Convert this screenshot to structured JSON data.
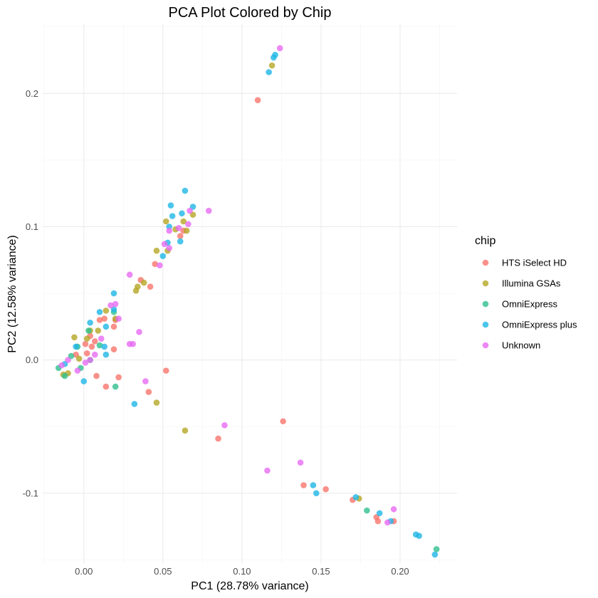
{
  "chart_data": {
    "type": "scatter",
    "title": "PCA Plot Colored by Chip",
    "xlabel": "PC1 (28.78% variance)",
    "ylabel": "PC2 (12.58% variance)",
    "xlim": [
      -0.026,
      0.236
    ],
    "ylim": [
      -0.153,
      0.252
    ],
    "x_ticks": [
      0.0,
      0.05,
      0.1,
      0.15,
      0.2
    ],
    "x_tick_labels": [
      "0.00",
      "0.05",
      "0.10",
      "0.15",
      "0.20"
    ],
    "y_ticks": [
      -0.1,
      0.0,
      0.1,
      0.2
    ],
    "y_tick_labels": [
      "-0.1",
      "0.0",
      "0.1",
      "0.2"
    ],
    "grid": true,
    "legend": {
      "title": "chip",
      "position": "right"
    },
    "series": [
      {
        "name": "HTS iSelect HD",
        "color": "#F8766D",
        "points": [
          [
            0.11,
            0.195
          ],
          [
            0.036,
            0.06
          ],
          [
            0.042,
            0.055
          ],
          [
            0.045,
            0.072
          ],
          [
            0.061,
            0.093
          ],
          [
            0.019,
            0.025
          ],
          [
            0.01,
            0.03
          ],
          [
            0.013,
            0.031
          ],
          [
            0.019,
            0.008
          ],
          [
            0.008,
            -0.012
          ],
          [
            0.014,
            -0.02
          ],
          [
            0.022,
            -0.013
          ],
          [
            0.041,
            -0.024
          ],
          [
            0.052,
            -0.008
          ],
          [
            0.063,
            0.097
          ],
          [
            0.005,
            0.01
          ],
          [
            0.007,
            0.014
          ],
          [
            0.004,
            0.018
          ],
          [
            0.001,
            0.012
          ],
          [
            0.126,
            -0.046
          ],
          [
            0.085,
            -0.059
          ],
          [
            0.139,
            -0.094
          ],
          [
            0.153,
            -0.097
          ],
          [
            0.17,
            -0.105
          ],
          [
            0.185,
            -0.118
          ],
          [
            0.186,
            -0.121
          ],
          [
            0.196,
            -0.121
          ],
          [
            0.002,
            0.005
          ],
          [
            -0.005,
            0.004
          ],
          [
            0.02,
            0.03
          ]
        ]
      },
      {
        "name": "Illumina GSAs",
        "color": "#B5A625",
        "points": [
          [
            0.119,
            0.221
          ],
          [
            0.052,
            0.104
          ],
          [
            0.058,
            0.098
          ],
          [
            0.063,
            0.104
          ],
          [
            0.069,
            0.109
          ],
          [
            0.046,
            0.082
          ],
          [
            0.053,
            0.082
          ],
          [
            0.034,
            0.055
          ],
          [
            0.038,
            0.058
          ],
          [
            0.033,
            0.052
          ],
          [
            0.02,
            0.031
          ],
          [
            0.014,
            0.037
          ],
          [
            0.009,
            0.022
          ],
          [
            0.004,
            0.022
          ],
          [
            0.002,
            0.016
          ],
          [
            -0.006,
            0.017
          ],
          [
            0.046,
            -0.032
          ],
          [
            0.064,
            -0.053
          ],
          [
            0.174,
            -0.104
          ],
          [
            0.065,
            0.097
          ],
          [
            -0.01,
            -0.01
          ],
          [
            -0.003,
            0.001
          ],
          [
            -0.013,
            -0.011
          ]
        ]
      },
      {
        "name": "OmniExpress",
        "color": "#2FBF8E",
        "points": [
          [
            0.02,
            -0.02
          ],
          [
            0.179,
            -0.113
          ],
          [
            0.223,
            -0.142
          ],
          [
            0.019,
            0.036
          ],
          [
            0.003,
            0.022
          ],
          [
            -0.004,
            0.01
          ],
          [
            -0.012,
            -0.012
          ],
          [
            -0.002,
            -0.006
          ],
          [
            0.004,
            0.0
          ],
          [
            -0.016,
            -0.006
          ],
          [
            0.01,
            0.011
          ],
          [
            -0.008,
            0.003
          ]
        ]
      },
      {
        "name": "OmniExpress plus",
        "color": "#1FB6E6",
        "points": [
          [
            0.121,
            0.229
          ],
          [
            0.12,
            0.227
          ],
          [
            0.117,
            0.216
          ],
          [
            0.064,
            0.127
          ],
          [
            0.055,
            0.116
          ],
          [
            0.069,
            0.115
          ],
          [
            0.062,
            0.11
          ],
          [
            0.056,
            0.108
          ],
          [
            0.054,
            0.1
          ],
          [
            0.053,
            0.088
          ],
          [
            0.061,
            0.089
          ],
          [
            0.05,
            0.078
          ],
          [
            0.019,
            0.05
          ],
          [
            0.01,
            0.036
          ],
          [
            0.004,
            0.028
          ],
          [
            0.014,
            0.025
          ],
          [
            0.013,
            0.01
          ],
          [
            0.014,
            0.004
          ],
          [
            0.032,
            -0.033
          ],
          [
            0.0,
            -0.016
          ],
          [
            0.145,
            -0.094
          ],
          [
            0.147,
            -0.1
          ],
          [
            0.172,
            -0.103
          ],
          [
            0.187,
            -0.115
          ],
          [
            0.194,
            -0.121
          ],
          [
            0.21,
            -0.131
          ],
          [
            0.212,
            -0.132
          ],
          [
            0.222,
            -0.146
          ],
          [
            0.019,
            0.038
          ],
          [
            -0.005,
            0.01
          ],
          [
            -0.012,
            -0.003
          ]
        ]
      },
      {
        "name": "Unknown",
        "color": "#E76BF3",
        "points": [
          [
            0.124,
            0.234
          ],
          [
            0.079,
            0.112
          ],
          [
            0.067,
            0.112
          ],
          [
            0.066,
            0.102
          ],
          [
            0.06,
            0.099
          ],
          [
            0.054,
            0.097
          ],
          [
            0.051,
            0.087
          ],
          [
            0.054,
            0.084
          ],
          [
            0.048,
            0.071
          ],
          [
            0.029,
            0.064
          ],
          [
            0.017,
            0.041
          ],
          [
            0.02,
            0.042
          ],
          [
            0.022,
            0.031
          ],
          [
            0.011,
            0.016
          ],
          [
            0.035,
            0.021
          ],
          [
            0.031,
            0.012
          ],
          [
            0.029,
            0.012
          ],
          [
            0.039,
            -0.016
          ],
          [
            0.007,
            0.004
          ],
          [
            0.089,
            -0.049
          ],
          [
            0.116,
            -0.083
          ],
          [
            0.137,
            -0.077
          ],
          [
            0.192,
            -0.122
          ],
          [
            0.196,
            -0.112
          ],
          [
            0.004,
            0.0
          ],
          [
            -0.01,
            0.0
          ],
          [
            -0.014,
            -0.004
          ],
          [
            -0.004,
            -0.008
          ],
          [
            0.001,
            -0.002
          ]
        ]
      }
    ]
  }
}
